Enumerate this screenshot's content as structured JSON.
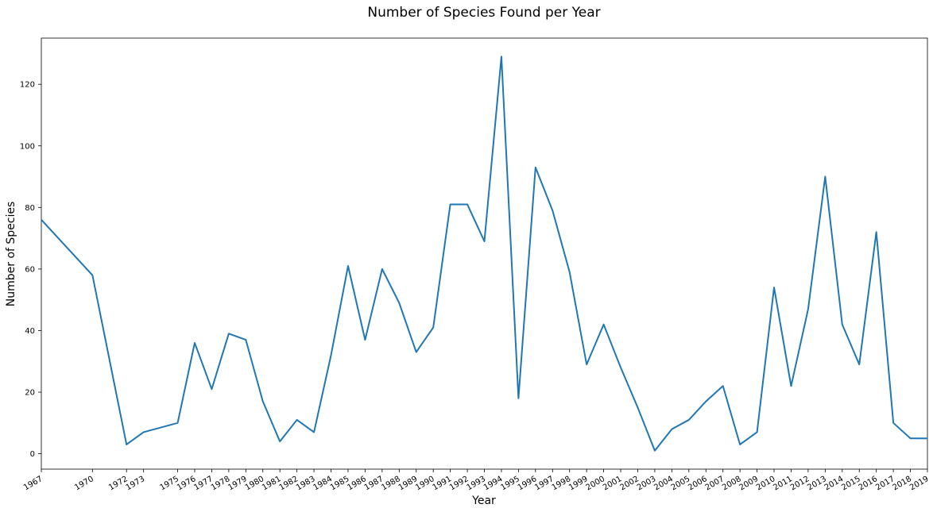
{
  "chart_data": {
    "type": "line",
    "title": "Number of Species Found per Year",
    "xlabel": "Year",
    "ylabel": "Number of Species",
    "xlim": [
      1967,
      2019
    ],
    "ylim": [
      -5,
      135
    ],
    "y_ticks": [
      0,
      20,
      40,
      60,
      80,
      100,
      120
    ],
    "x_ticks": [
      1967,
      1970,
      1972,
      1973,
      1975,
      1976,
      1977,
      1978,
      1979,
      1980,
      1981,
      1982,
      1983,
      1984,
      1985,
      1986,
      1987,
      1988,
      1989,
      1990,
      1991,
      1992,
      1993,
      1994,
      1995,
      1996,
      1997,
      1998,
      1999,
      2000,
      2001,
      2002,
      2003,
      2004,
      2005,
      2006,
      2007,
      2008,
      2009,
      2010,
      2011,
      2012,
      2013,
      2014,
      2015,
      2016,
      2017,
      2018,
      2019
    ],
    "grid": false,
    "color": "#1f77b4",
    "series": [
      {
        "x": [
          1967,
          1970,
          1972,
          1973,
          1975,
          1976,
          1977,
          1978,
          1979,
          1980,
          1981,
          1982,
          1983,
          1984,
          1985,
          1986,
          1987,
          1988,
          1989,
          1990,
          1991,
          1992,
          1993,
          1994,
          1995,
          1996,
          1997,
          1998,
          1999,
          2000,
          2001,
          2002,
          2003,
          2004,
          2005,
          2006,
          2007,
          2008,
          2009,
          2010,
          2011,
          2012,
          2013,
          2014,
          2015,
          2016,
          2017,
          2018,
          2019
        ],
        "y": [
          76,
          58,
          3,
          7,
          10,
          36,
          21,
          39,
          37,
          17,
          4,
          11,
          7,
          32,
          61,
          37,
          60,
          49,
          33,
          41,
          81,
          81,
          69,
          129,
          18,
          93,
          79,
          59,
          29,
          42,
          28,
          15,
          1,
          8,
          11,
          17,
          22,
          3,
          7,
          54,
          22,
          47,
          90,
          42,
          29,
          72,
          10,
          5,
          5
        ]
      }
    ]
  }
}
